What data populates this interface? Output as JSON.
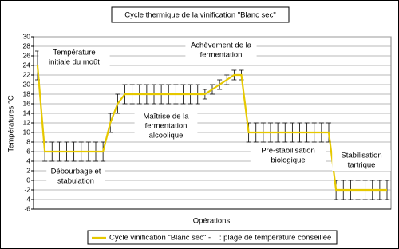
{
  "chart_data": {
    "type": "line",
    "title": "Cycle thermique de la vinification \"Blanc sec\"",
    "y_label": "Températures °C",
    "x_label": "Opérations",
    "categories": [
      null,
      null,
      null,
      null,
      null,
      null,
      null,
      null,
      null,
      null,
      null,
      null,
      null,
      null,
      null,
      null,
      null,
      null,
      null,
      null,
      null,
      null,
      null,
      null,
      null,
      null,
      null,
      null,
      null,
      null,
      null,
      null,
      null,
      null,
      null,
      null,
      null,
      null,
      null,
      null,
      null,
      null,
      null,
      null,
      null,
      null,
      null,
      null,
      null
    ],
    "series": [
      {
        "name": "Cycle vinification \"Blanc sec\" - T : plage de température conseillée",
        "color": "#e6c800",
        "values": [
          24,
          6,
          6,
          6,
          6,
          6,
          6,
          6,
          6,
          6,
          12,
          16,
          18,
          18,
          18,
          18,
          18,
          18,
          18,
          18,
          18,
          18,
          18,
          18,
          19,
          20,
          21,
          22,
          22,
          10,
          10,
          10,
          10,
          10,
          10,
          10,
          10,
          10,
          10,
          10,
          10,
          -2,
          -2,
          -2,
          -2,
          -2,
          -2,
          -2,
          -2
        ],
        "errors": [
          3,
          2,
          2,
          2,
          2,
          2,
          2,
          2,
          2,
          2,
          2,
          2,
          2,
          2,
          2,
          2,
          2,
          2,
          2,
          2,
          2,
          2,
          2,
          1,
          1,
          1,
          1,
          1,
          1,
          2,
          2,
          2,
          2,
          2,
          2,
          2,
          2,
          2,
          2,
          2,
          2,
          2,
          2,
          2,
          2,
          2,
          2,
          2,
          2
        ]
      }
    ],
    "ylim": [
      -6,
      30
    ],
    "yticks": [
      -6,
      -4,
      -2,
      0,
      2,
      4,
      6,
      8,
      10,
      12,
      14,
      16,
      18,
      20,
      22,
      24,
      26,
      28,
      30
    ],
    "grid": true,
    "annotations": [
      {
        "lines": [
          "Température",
          "initiale du moût"
        ]
      },
      {
        "lines": [
          "Débourbage et",
          "stabulation"
        ]
      },
      {
        "lines": [
          "Maîtrise de la",
          "fermentation",
          "alcoolique"
        ]
      },
      {
        "lines": [
          "Achèvement de la",
          "fermentation"
        ]
      },
      {
        "lines": [
          "Pré-stabilisation",
          "biologique"
        ]
      },
      {
        "lines": [
          "Stabilisation",
          "tartrique"
        ]
      }
    ]
  }
}
